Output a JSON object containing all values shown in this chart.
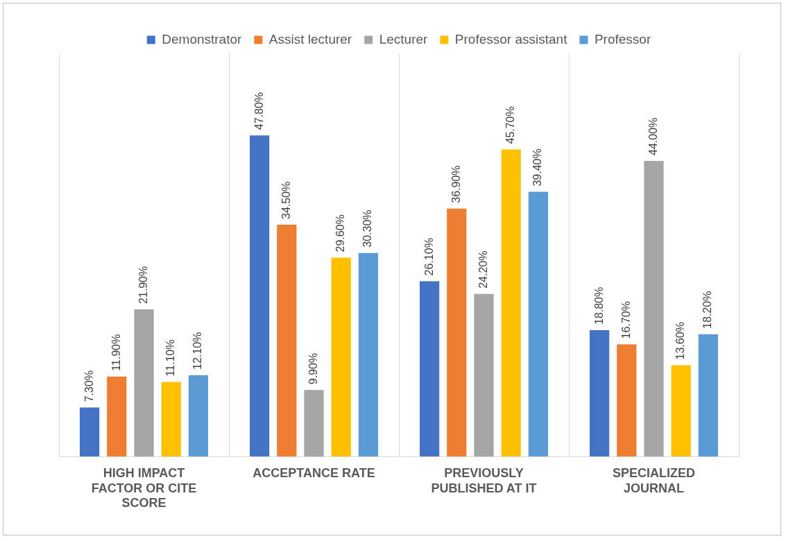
{
  "chart_data": {
    "type": "bar",
    "categories": [
      "HIGH IMPACT FACTOR OR CITE SCORE",
      "ACCEPTANCE RATE",
      "PREVIOUSLY PUBLISHED AT IT",
      "SPECIALIZED JOURNAL"
    ],
    "series": [
      {
        "name": "Demonstrator",
        "color": "#4472c4",
        "values": [
          7.3,
          47.8,
          26.1,
          18.8
        ],
        "value_labels": [
          "7.30%",
          "47.80%",
          "26.10%",
          "18.80%"
        ]
      },
      {
        "name": "Assist lecturer",
        "color": "#ed7d31",
        "values": [
          11.9,
          34.5,
          36.9,
          16.7
        ],
        "value_labels": [
          "11.90%",
          "34.50%",
          "36.90%",
          "16.70%"
        ]
      },
      {
        "name": "Lecturer",
        "color": "#a5a5a5",
        "values": [
          21.9,
          9.9,
          24.2,
          44.0
        ],
        "value_labels": [
          "21.90%",
          "9.90%",
          "24.20%",
          "44.00%"
        ]
      },
      {
        "name": "Professor assistant",
        "color": "#ffc000",
        "values": [
          11.1,
          29.6,
          45.7,
          13.6
        ],
        "value_labels": [
          "11.10%",
          "29.60%",
          "45.70%",
          "13.60%"
        ]
      },
      {
        "name": "Professor",
        "color": "#5b9bd5",
        "values": [
          12.1,
          30.3,
          39.4,
          18.2
        ],
        "value_labels": [
          "12.10%",
          "30.30%",
          "39.40%",
          "18.20%"
        ]
      }
    ],
    "grid": "x",
    "legend": "top"
  }
}
